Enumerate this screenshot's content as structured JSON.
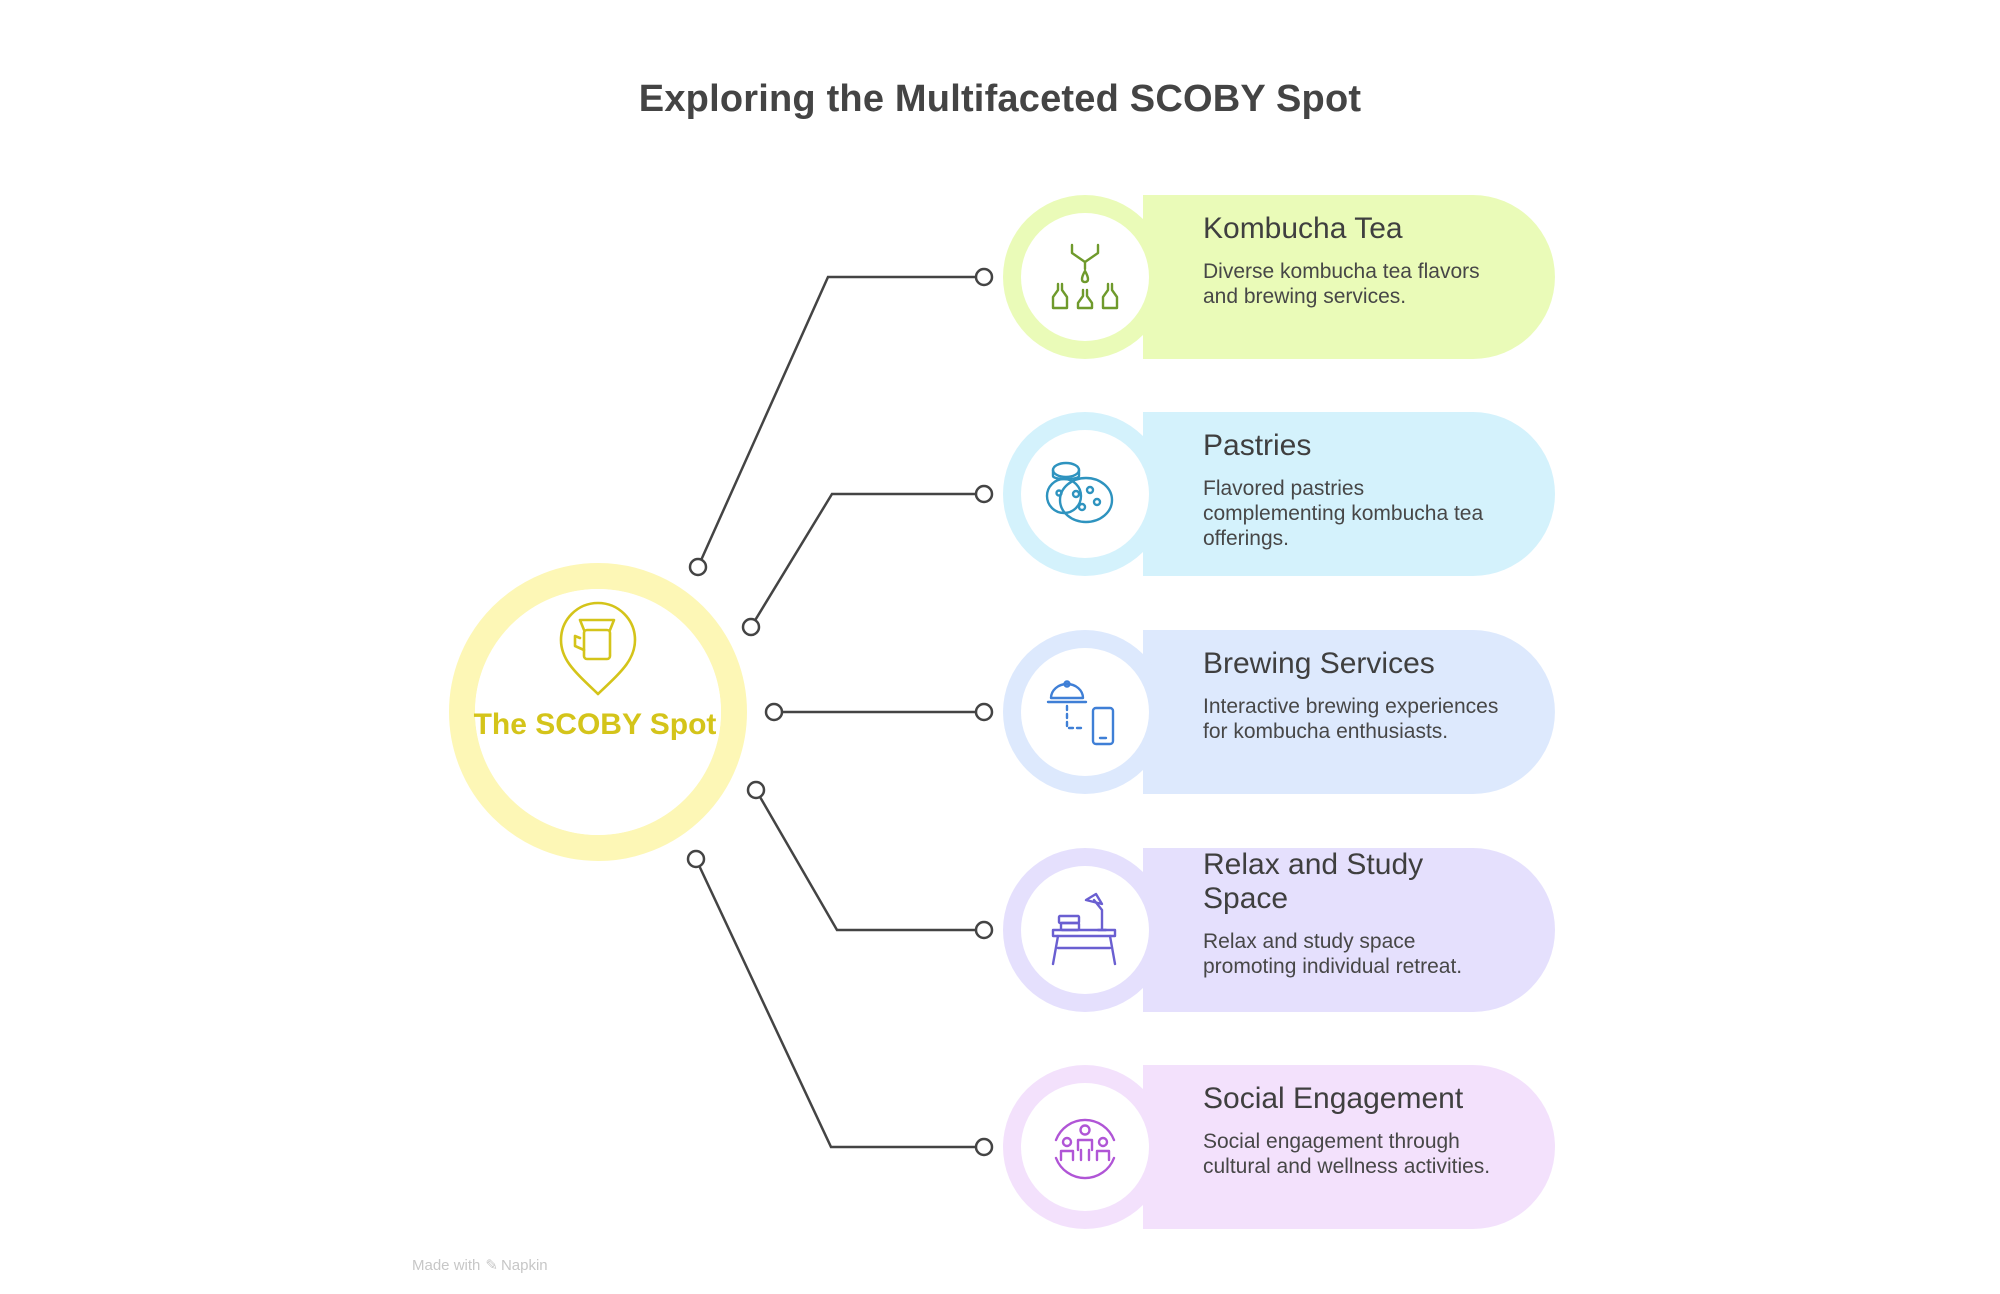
{
  "title": "Exploring the Multifaceted SCOBY Spot",
  "hub": {
    "label": "The SCOBY Spot",
    "icon": "map-pin-cup-icon",
    "color": "#d4c41a"
  },
  "items": [
    {
      "title": "Kombucha Tea",
      "description": "Diverse kombucha tea flavors and brewing services.",
      "icon": "pouring-bottles-icon",
      "color": "#6f9a2c",
      "bg": "#eafbb8"
    },
    {
      "title": "Pastries",
      "description": "Flavored pastries complementing kombucha tea offerings.",
      "icon": "cookies-icon",
      "color": "#2e93bf",
      "bg": "#d4f2fc"
    },
    {
      "title": "Brewing Services",
      "description": "Interactive brewing experiences for kombucha enthusiasts.",
      "icon": "cloche-phone-icon",
      "color": "#3f7fd6",
      "bg": "#dde9fd"
    },
    {
      "title": "Relax and Study Space",
      "description": "Relax and study space promoting individual retreat.",
      "icon": "desk-lamp-icon",
      "color": "#6a5fd1",
      "bg": "#e5e0fd"
    },
    {
      "title": "Social Engagement",
      "description": "Social engagement through cultural and wellness activities.",
      "icon": "people-group-icon",
      "color": "#b055d6",
      "bg": "#f3e1fc"
    }
  ],
  "footer": {
    "prefix": "Made with",
    "brand": "Napkin"
  }
}
